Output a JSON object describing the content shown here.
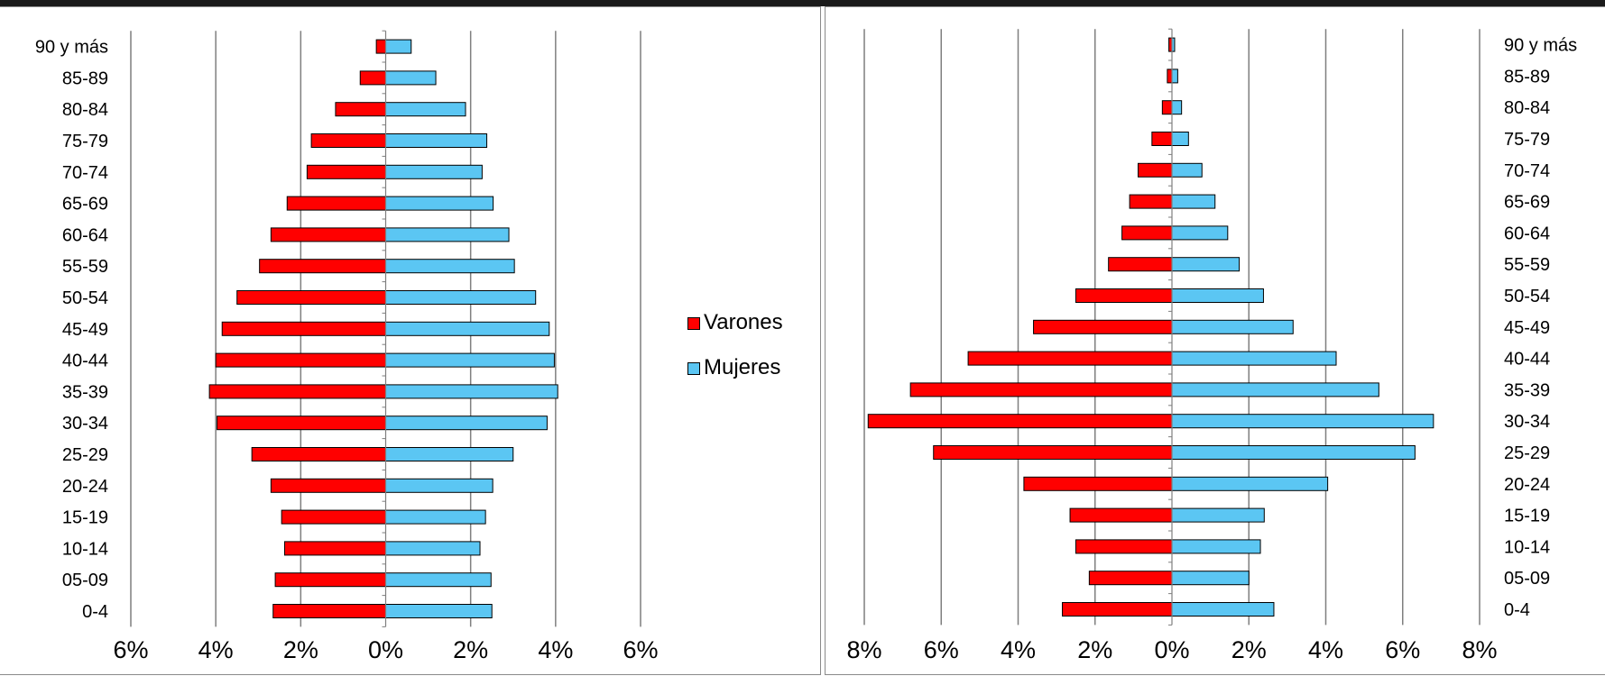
{
  "colors": {
    "male": "#ff0000",
    "female": "#5bc6f3",
    "grid": "#7f7f7f",
    "axis": "#7f7f7f"
  },
  "legend": {
    "male_label": "Varones",
    "female_label": "Mujeres"
  },
  "chart_data": [
    {
      "type": "bar",
      "orientation": "horizontal",
      "stacked_pyramid": true,
      "categories": [
        "0-4",
        "05-09",
        "10-14",
        "15-19",
        "20-24",
        "25-29",
        "30-34",
        "35-39",
        "40-44",
        "45-49",
        "50-54",
        "55-59",
        "60-64",
        "65-69",
        "70-74",
        "75-79",
        "80-84",
        "85-89",
        "90 y más"
      ],
      "series": [
        {
          "name": "Varones",
          "values": [
            -2.65,
            -2.6,
            -2.38,
            -2.45,
            -2.7,
            -3.15,
            -3.97,
            -4.15,
            -4.0,
            -3.85,
            -3.5,
            -2.97,
            -2.7,
            -2.32,
            -1.85,
            -1.75,
            -1.18,
            -0.6,
            -0.22
          ]
        },
        {
          "name": "Mujeres",
          "values": [
            2.5,
            2.48,
            2.22,
            2.35,
            2.52,
            3.0,
            3.8,
            4.05,
            3.97,
            3.85,
            3.53,
            3.03,
            2.9,
            2.53,
            2.27,
            2.38,
            1.88,
            1.18,
            0.6
          ]
        }
      ],
      "xlim": [
        -6,
        6
      ],
      "xticks": [
        -6,
        -4,
        -2,
        0,
        2,
        4,
        6
      ],
      "xtick_labels": [
        "6%",
        "4%",
        "2%",
        "0%",
        "2%",
        "4%",
        "6%"
      ],
      "grid": true,
      "legend_position": "right"
    },
    {
      "type": "bar",
      "orientation": "horizontal",
      "stacked_pyramid": true,
      "categories": [
        "0-4",
        "05-09",
        "10-14",
        "15-19",
        "20-24",
        "25-29",
        "30-34",
        "35-39",
        "40-44",
        "45-49",
        "50-54",
        "55-59",
        "60-64",
        "65-69",
        "70-74",
        "75-79",
        "80-84",
        "85-89",
        "90 y más"
      ],
      "series": [
        {
          "name": "Varones",
          "values": [
            -2.85,
            -2.15,
            -2.5,
            -2.65,
            -3.85,
            -6.2,
            -7.9,
            -6.8,
            -5.3,
            -3.6,
            -2.5,
            -1.65,
            -1.3,
            -1.1,
            -0.88,
            -0.52,
            -0.25,
            -0.12,
            -0.08
          ]
        },
        {
          "name": "Mujeres",
          "values": [
            2.65,
            2.0,
            2.3,
            2.4,
            4.05,
            6.32,
            6.8,
            5.38,
            4.27,
            3.15,
            2.38,
            1.75,
            1.45,
            1.12,
            0.78,
            0.43,
            0.25,
            0.15,
            0.07
          ]
        }
      ],
      "xlim": [
        -8,
        8
      ],
      "xticks": [
        -8,
        -6,
        -4,
        -2,
        0,
        2,
        4,
        6,
        8
      ],
      "xtick_labels": [
        "8%",
        "6%",
        "4%",
        "2%",
        "0%",
        "2%",
        "4%",
        "6%",
        "8%"
      ],
      "grid": true
    }
  ]
}
